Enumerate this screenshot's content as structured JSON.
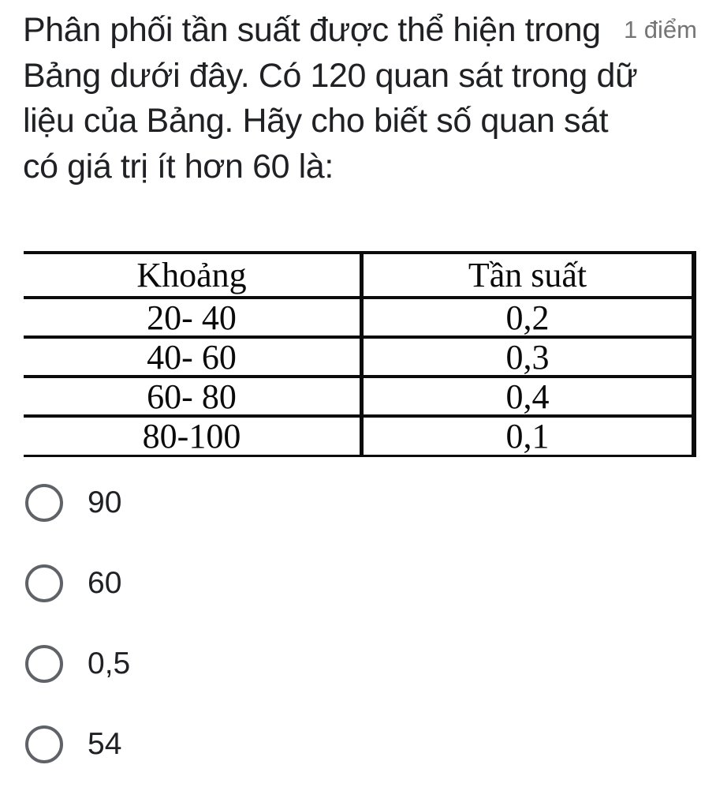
{
  "question": {
    "lines": [
      "Phân phối tần suất được thể hiện trong",
      "Bảng dưới đây. Có 120 quan sát trong dữ",
      "liệu của Bảng. Hãy cho biết số quan sát",
      "có giá trị ít hơn 60 là:"
    ],
    "points_label": "1 điểm"
  },
  "table": {
    "headers": [
      "Khoảng",
      "Tần suất"
    ],
    "rows": [
      {
        "range": "20- 40",
        "freq": "0,2"
      },
      {
        "range": "40- 60",
        "freq": "0,3"
      },
      {
        "range": "60- 80",
        "freq": "0,4"
      },
      {
        "range": "80-100",
        "freq": "0,1"
      }
    ]
  },
  "options": [
    {
      "label": "90"
    },
    {
      "label": "60"
    },
    {
      "label": "0,5"
    },
    {
      "label": "54"
    }
  ],
  "colors": {
    "text": "#202124",
    "muted_text": "#757575",
    "radio_stroke": "#5f6368",
    "table_line": "#0b0b0b"
  }
}
